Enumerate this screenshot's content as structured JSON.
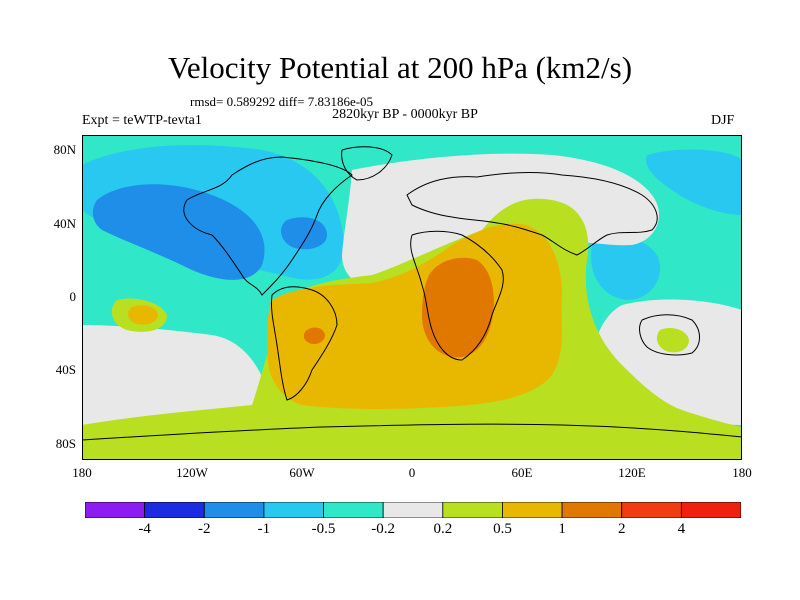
{
  "title": "Velocity Potential at 200 hPa (km2/s)",
  "stats": "rmsd= 0.589292 diff= 7.83186e-05",
  "subtitle": "2820kyr BP - 0000kyr BP",
  "left_label": "Expt = teWTP-tevta1",
  "right_label": "DJF",
  "lat_ticks": [
    "80N",
    "40N",
    "0",
    "40S",
    "80S"
  ],
  "lon_ticks": [
    "180",
    "120W",
    "60W",
    "0",
    "60E",
    "120E",
    "180"
  ],
  "colorbar": {
    "colors": [
      "#8c1cf0",
      "#1c2ce0",
      "#1f8ee8",
      "#28c8f0",
      "#30e8c8",
      "#e8e8e8",
      "#b8e020",
      "#e8b800",
      "#e07800",
      "#f03c10",
      "#f02010"
    ],
    "labels": [
      "-4",
      "-2",
      "-1",
      "-0.5",
      "-0.2",
      "0.2",
      "0.5",
      "1",
      "2",
      "4"
    ]
  },
  "regions": {
    "background": "#30e8c8",
    "neutral": "#e8e8e8",
    "neg1": "#28c8f0",
    "neg2": "#1f8ee8",
    "pos1": "#b8e020",
    "pos2": "#e8b800",
    "pos3": "#e07800"
  }
}
